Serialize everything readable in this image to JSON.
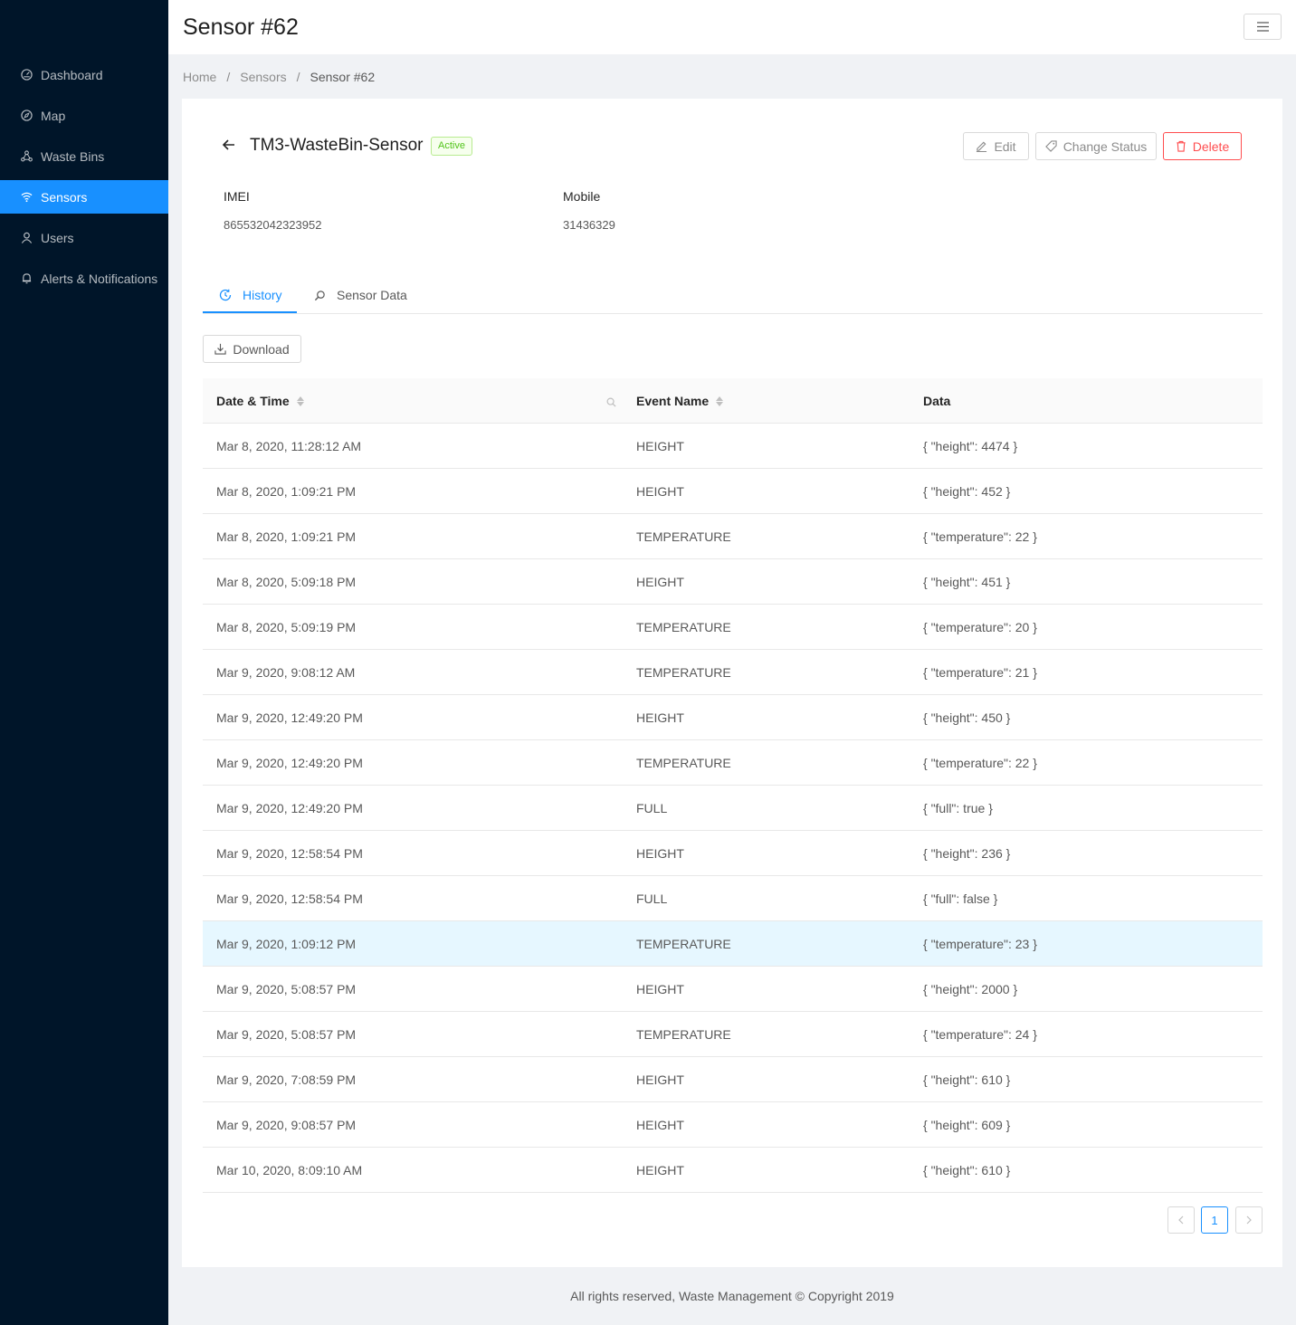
{
  "sidebar": {
    "items": [
      {
        "label": "Dashboard",
        "icon": "dashboard-icon"
      },
      {
        "label": "Map",
        "icon": "compass-icon"
      },
      {
        "label": "Waste Bins",
        "icon": "cluster-icon"
      },
      {
        "label": "Sensors",
        "icon": "wifi-icon",
        "selected": true
      },
      {
        "label": "Users",
        "icon": "user-icon"
      },
      {
        "label": "Alerts & Notifications",
        "icon": "bell-icon"
      }
    ]
  },
  "header": {
    "title": "Sensor #62"
  },
  "breadcrumb": [
    "Home",
    "Sensors",
    "Sensor #62"
  ],
  "sensor": {
    "name": "TM3-WasteBin-Sensor",
    "status": "Active",
    "imei_label": "IMEI",
    "imei": "865532042323952",
    "mobile_label": "Mobile",
    "mobile": "31436329"
  },
  "actions": {
    "edit": "Edit",
    "change_status": "Change Status",
    "delete": "Delete"
  },
  "tabs": {
    "history": "History",
    "sensor_data": "Sensor Data"
  },
  "download_label": "Download",
  "table": {
    "columns": [
      "Date & Time",
      "Event Name",
      "Data"
    ],
    "rows": [
      [
        "Mar 8, 2020, 11:28:12 AM",
        "HEIGHT",
        "{ \"height\": 4474 }"
      ],
      [
        "Mar 8, 2020, 1:09:21 PM",
        "HEIGHT",
        "{ \"height\": 452 }"
      ],
      [
        "Mar 8, 2020, 1:09:21 PM",
        "TEMPERATURE",
        "{ \"temperature\": 22 }"
      ],
      [
        "Mar 8, 2020, 5:09:18 PM",
        "HEIGHT",
        "{ \"height\": 451 }"
      ],
      [
        "Mar 8, 2020, 5:09:19 PM",
        "TEMPERATURE",
        "{ \"temperature\": 20 }"
      ],
      [
        "Mar 9, 2020, 9:08:12 AM",
        "TEMPERATURE",
        "{ \"temperature\": 21 }"
      ],
      [
        "Mar 9, 2020, 12:49:20 PM",
        "HEIGHT",
        "{ \"height\": 450 }"
      ],
      [
        "Mar 9, 2020, 12:49:20 PM",
        "TEMPERATURE",
        "{ \"temperature\": 22 }"
      ],
      [
        "Mar 9, 2020, 12:49:20 PM",
        "FULL",
        "{ \"full\": true }"
      ],
      [
        "Mar 9, 2020, 12:58:54 PM",
        "HEIGHT",
        "{ \"height\": 236 }"
      ],
      [
        "Mar 9, 2020, 12:58:54 PM",
        "FULL",
        "{ \"full\": false }"
      ],
      [
        "Mar 9, 2020, 1:09:12 PM",
        "TEMPERATURE",
        "{ \"temperature\": 23 }"
      ],
      [
        "Mar 9, 2020, 5:08:57 PM",
        "HEIGHT",
        "{ \"height\": 2000 }"
      ],
      [
        "Mar 9, 2020, 5:08:57 PM",
        "TEMPERATURE",
        "{ \"temperature\": 24 }"
      ],
      [
        "Mar 9, 2020, 7:08:59 PM",
        "HEIGHT",
        "{ \"height\": 610 }"
      ],
      [
        "Mar 9, 2020, 9:08:57 PM",
        "HEIGHT",
        "{ \"height\": 609 }"
      ],
      [
        "Mar 10, 2020, 8:09:10 AM",
        "HEIGHT",
        "{ \"height\": 610 }"
      ]
    ],
    "highlighted_row": 11
  },
  "pagination": {
    "prev": "<",
    "current": "1",
    "next": ">"
  },
  "footer": "All rights reserved, Waste Management © Copyright 2019",
  "colors": {
    "sidebar": "#001529",
    "accent": "#1890ff",
    "danger": "#ff4d4f",
    "success": "#52c41a"
  }
}
